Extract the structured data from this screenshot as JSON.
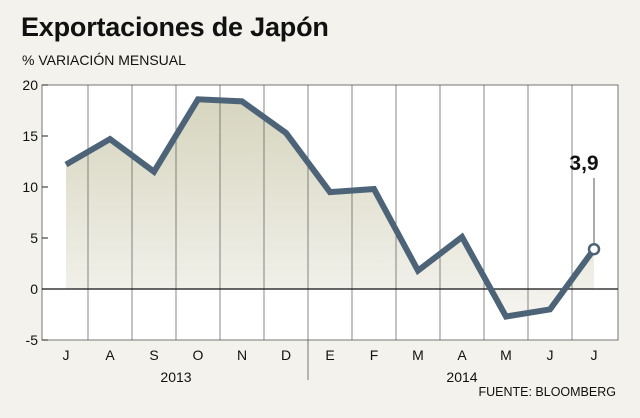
{
  "header": {
    "title": "Exportaciones de Japón",
    "subtitle": "% VARIACIÓN MENSUAL"
  },
  "footer": {
    "source": "FUENTE: BLOOMBERG"
  },
  "colors": {
    "line": "#4d6478",
    "area_top": "#d6d5bf",
    "area_bottom": "#f5f4ef",
    "grid": "#555555",
    "background": "#f3f2ec"
  },
  "chart_data": {
    "type": "line",
    "title": "Exportaciones de Japón",
    "subtitle": "% VARIACIÓN MENSUAL",
    "xlabel": "",
    "ylabel": "",
    "categories": [
      "J",
      "A",
      "S",
      "O",
      "N",
      "D",
      "E",
      "F",
      "M",
      "A",
      "M",
      "J",
      "J"
    ],
    "year_labels": [
      {
        "label": "2013",
        "from": 0,
        "to": 5
      },
      {
        "label": "2014",
        "from": 6,
        "to": 12
      }
    ],
    "series": [
      {
        "values": [
          12.2,
          14.7,
          11.5,
          18.6,
          18.4,
          15.3,
          9.5,
          9.8,
          1.8,
          5.1,
          -2.7,
          -2.0,
          3.9
        ]
      }
    ],
    "ylim": [
      -5,
      20
    ],
    "yticks": [
      -5,
      0,
      5,
      10,
      15,
      20
    ],
    "grid": true,
    "annotation": {
      "index": 12,
      "label": "3,9"
    }
  }
}
